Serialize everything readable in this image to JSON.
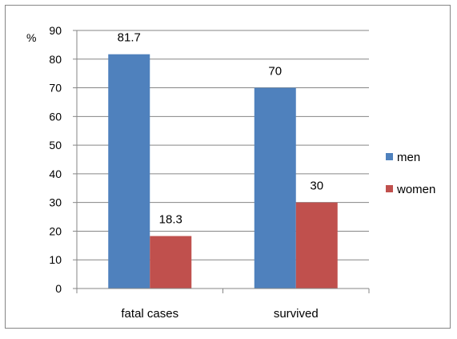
{
  "chart_data": {
    "type": "bar",
    "title": "",
    "xlabel": "",
    "ylabel": "%",
    "categories": [
      "fatal cases",
      "survived"
    ],
    "series": [
      {
        "name": "men",
        "values": [
          81.7,
          70
        ],
        "labels": [
          "81.7",
          "70"
        ],
        "color": "#4F81BD"
      },
      {
        "name": "women",
        "values": [
          18.3,
          30
        ],
        "labels": [
          "18.3",
          "30"
        ],
        "color": "#C0504D"
      }
    ],
    "ylim": [
      0,
      90
    ],
    "yticks": [
      0,
      10,
      20,
      30,
      40,
      50,
      60,
      70,
      80,
      90
    ],
    "grid": true,
    "legend": "right"
  }
}
